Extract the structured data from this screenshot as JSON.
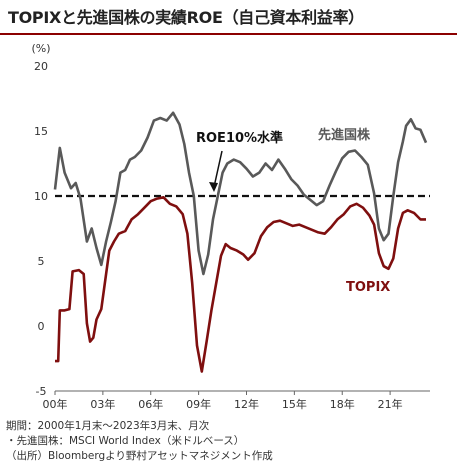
{
  "title": "TOPIXと先進国株の実績ROE（自己資本利益率）",
  "chart_data": {
    "type": "line",
    "ylabel": "(%)",
    "ylim": [
      -5,
      20
    ],
    "yticks": [
      20,
      15,
      10,
      5,
      0,
      -5
    ],
    "xticks": [
      {
        "year": 2000,
        "label": "00年"
      },
      {
        "year": 2003,
        "label": "03年"
      },
      {
        "year": 2006,
        "label": "06年"
      },
      {
        "year": 2009,
        "label": "09年"
      },
      {
        "year": 2012,
        "label": "12年"
      },
      {
        "year": 2015,
        "label": "15年"
      },
      {
        "year": 2018,
        "label": "18年"
      },
      {
        "year": 2021,
        "label": "21年"
      }
    ],
    "xlim": [
      2000.0,
      2023.5
    ],
    "reference_line": {
      "y": 10,
      "label": "ROE10%水準",
      "style": "dashed"
    },
    "series": [
      {
        "name": "先進国株",
        "color": "#595959",
        "points": [
          [
            2000.0,
            10.5
          ],
          [
            2000.3,
            13.7
          ],
          [
            2000.6,
            11.8
          ],
          [
            2001.0,
            10.6
          ],
          [
            2001.3,
            11.0
          ],
          [
            2001.6,
            9.8
          ],
          [
            2002.0,
            6.5
          ],
          [
            2002.3,
            7.5
          ],
          [
            2002.6,
            6.0
          ],
          [
            2002.9,
            4.7
          ],
          [
            2003.2,
            6.5
          ],
          [
            2003.5,
            8.0
          ],
          [
            2003.8,
            9.6
          ],
          [
            2004.1,
            11.8
          ],
          [
            2004.4,
            12.0
          ],
          [
            2004.7,
            12.8
          ],
          [
            2005.0,
            13.0
          ],
          [
            2005.4,
            13.5
          ],
          [
            2005.8,
            14.5
          ],
          [
            2006.2,
            15.8
          ],
          [
            2006.6,
            16.0
          ],
          [
            2007.0,
            15.8
          ],
          [
            2007.4,
            16.4
          ],
          [
            2007.8,
            15.5
          ],
          [
            2008.1,
            14.0
          ],
          [
            2008.4,
            11.8
          ],
          [
            2008.7,
            10.0
          ],
          [
            2009.0,
            5.8
          ],
          [
            2009.3,
            4.0
          ],
          [
            2009.6,
            5.5
          ],
          [
            2009.9,
            8.2
          ],
          [
            2010.2,
            10.0
          ],
          [
            2010.5,
            11.8
          ],
          [
            2010.8,
            12.5
          ],
          [
            2011.2,
            12.8
          ],
          [
            2011.6,
            12.6
          ],
          [
            2012.0,
            12.1
          ],
          [
            2012.4,
            11.5
          ],
          [
            2012.8,
            11.8
          ],
          [
            2013.2,
            12.5
          ],
          [
            2013.6,
            12.0
          ],
          [
            2014.0,
            12.8
          ],
          [
            2014.4,
            12.1
          ],
          [
            2014.8,
            11.3
          ],
          [
            2015.2,
            10.8
          ],
          [
            2015.6,
            10.1
          ],
          [
            2016.0,
            9.7
          ],
          [
            2016.4,
            9.3
          ],
          [
            2016.8,
            9.6
          ],
          [
            2017.2,
            10.8
          ],
          [
            2017.6,
            11.9
          ],
          [
            2018.0,
            12.9
          ],
          [
            2018.4,
            13.4
          ],
          [
            2018.8,
            13.5
          ],
          [
            2019.2,
            13.0
          ],
          [
            2019.6,
            12.4
          ],
          [
            2020.0,
            10.2
          ],
          [
            2020.3,
            7.5
          ],
          [
            2020.6,
            6.6
          ],
          [
            2020.9,
            7.1
          ],
          [
            2021.2,
            10.0
          ],
          [
            2021.5,
            12.6
          ],
          [
            2021.8,
            14.2
          ],
          [
            2022.0,
            15.4
          ],
          [
            2022.3,
            15.9
          ],
          [
            2022.6,
            15.2
          ],
          [
            2022.9,
            15.1
          ],
          [
            2023.25,
            14.1
          ]
        ]
      },
      {
        "name": "TOPIX",
        "color": "#7f0f0f",
        "points": [
          [
            2000.0,
            -2.7
          ],
          [
            2000.2,
            -2.7
          ],
          [
            2000.3,
            1.2
          ],
          [
            2000.6,
            1.2
          ],
          [
            2000.9,
            1.3
          ],
          [
            2001.1,
            4.2
          ],
          [
            2001.5,
            4.3
          ],
          [
            2001.8,
            4.0
          ],
          [
            2002.0,
            0.2
          ],
          [
            2002.2,
            -1.2
          ],
          [
            2002.4,
            -0.9
          ],
          [
            2002.6,
            0.5
          ],
          [
            2002.9,
            1.3
          ],
          [
            2003.1,
            3.1
          ],
          [
            2003.4,
            5.8
          ],
          [
            2003.7,
            6.5
          ],
          [
            2004.0,
            7.1
          ],
          [
            2004.4,
            7.3
          ],
          [
            2004.8,
            8.2
          ],
          [
            2005.2,
            8.6
          ],
          [
            2005.6,
            9.1
          ],
          [
            2006.0,
            9.6
          ],
          [
            2006.4,
            9.8
          ],
          [
            2006.8,
            9.9
          ],
          [
            2007.2,
            9.4
          ],
          [
            2007.6,
            9.2
          ],
          [
            2008.0,
            8.6
          ],
          [
            2008.3,
            7.1
          ],
          [
            2008.6,
            3.3
          ],
          [
            2008.9,
            -1.5
          ],
          [
            2009.2,
            -3.5
          ],
          [
            2009.5,
            -1.2
          ],
          [
            2009.8,
            1.2
          ],
          [
            2010.1,
            3.3
          ],
          [
            2010.4,
            5.4
          ],
          [
            2010.7,
            6.3
          ],
          [
            2011.0,
            6.0
          ],
          [
            2011.4,
            5.8
          ],
          [
            2011.8,
            5.5
          ],
          [
            2012.1,
            5.1
          ],
          [
            2012.5,
            5.6
          ],
          [
            2012.9,
            6.9
          ],
          [
            2013.3,
            7.6
          ],
          [
            2013.7,
            8.0
          ],
          [
            2014.1,
            8.1
          ],
          [
            2014.5,
            7.9
          ],
          [
            2014.9,
            7.7
          ],
          [
            2015.3,
            7.8
          ],
          [
            2015.7,
            7.6
          ],
          [
            2016.1,
            7.4
          ],
          [
            2016.5,
            7.2
          ],
          [
            2016.9,
            7.1
          ],
          [
            2017.3,
            7.6
          ],
          [
            2017.7,
            8.2
          ],
          [
            2018.1,
            8.6
          ],
          [
            2018.5,
            9.2
          ],
          [
            2018.9,
            9.4
          ],
          [
            2019.3,
            9.1
          ],
          [
            2019.7,
            8.5
          ],
          [
            2020.0,
            7.8
          ],
          [
            2020.3,
            5.6
          ],
          [
            2020.6,
            4.6
          ],
          [
            2020.9,
            4.4
          ],
          [
            2021.2,
            5.2
          ],
          [
            2021.5,
            7.5
          ],
          [
            2021.8,
            8.7
          ],
          [
            2022.1,
            8.9
          ],
          [
            2022.5,
            8.7
          ],
          [
            2022.9,
            8.2
          ],
          [
            2023.25,
            8.2
          ]
        ]
      }
    ],
    "annotations": [
      {
        "text": "先進国株",
        "series": "先進国株",
        "color": "#595959"
      },
      {
        "text": "TOPIX",
        "series": "TOPIX",
        "color": "#7f0f0f"
      },
      {
        "text": "ROE10%水準",
        "color": "#111111",
        "arrow": true
      }
    ]
  },
  "footnotes": [
    "期間：2000年1月末～2023年3月末、月次",
    "・先進国株：MSCI World Index（米ドルベース）",
    "（出所）Bloombergより野村アセットマネジメント作成"
  ]
}
